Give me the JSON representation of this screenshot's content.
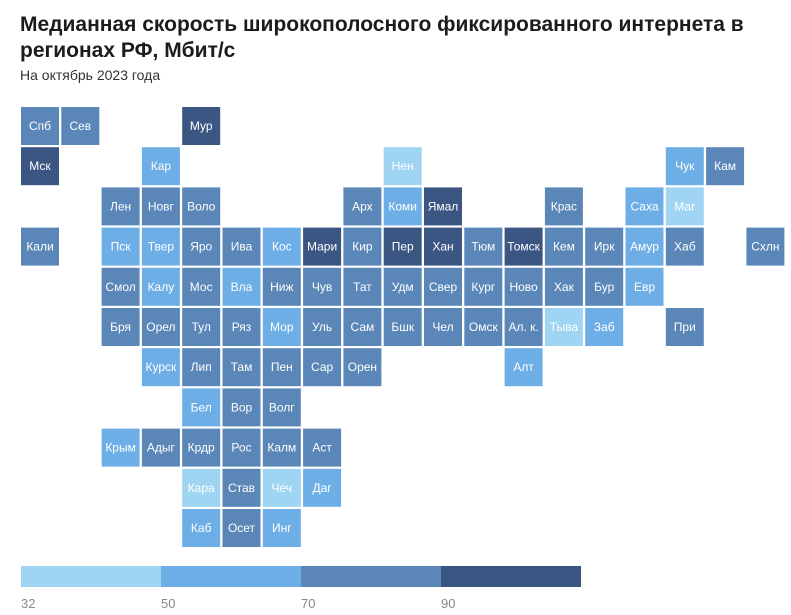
{
  "header": {
    "title": "Медианная скорость широкополосного фиксированного интернета в регионах РФ, Мбит/с",
    "subtitle": "На октябрь 2023 года"
  },
  "chart_data": {
    "type": "heatmap",
    "title": "Медианная скорость широкополосного фиксированного интернета в регионах РФ, Мбит/с",
    "subtitle": "На октябрь 2023 года",
    "value_unit": "Мбит/с",
    "bins": [
      {
        "from": 32,
        "to": 50,
        "color": "#9fd5f3"
      },
      {
        "from": 50,
        "to": 70,
        "color": "#6eaee6"
      },
      {
        "from": 70,
        "to": 90,
        "color": "#5a86b8"
      },
      {
        "from": 90,
        "to": null,
        "color": "#3b5683"
      }
    ],
    "legend_ticks": [
      "32",
      "50",
      "70",
      "90"
    ],
    "cells": [
      {
        "label": "Спб",
        "col": 0,
        "row": 0,
        "bin": 2
      },
      {
        "label": "Сев",
        "col": 1,
        "row": 0,
        "bin": 2
      },
      {
        "label": "Мур",
        "col": 4,
        "row": 0,
        "bin": 3
      },
      {
        "label": "Мск",
        "col": 0,
        "row": 1,
        "bin": 3
      },
      {
        "label": "Кар",
        "col": 3,
        "row": 1,
        "bin": 1
      },
      {
        "label": "Нен",
        "col": 9,
        "row": 1,
        "bin": 0
      },
      {
        "label": "Чук",
        "col": 16,
        "row": 1,
        "bin": 1
      },
      {
        "label": "Кам",
        "col": 17,
        "row": 1,
        "bin": 2
      },
      {
        "label": "Лен",
        "col": 2,
        "row": 2,
        "bin": 2
      },
      {
        "label": "Новг",
        "col": 3,
        "row": 2,
        "bin": 2
      },
      {
        "label": "Воло",
        "col": 4,
        "row": 2,
        "bin": 2
      },
      {
        "label": "Арх",
        "col": 8,
        "row": 2,
        "bin": 2
      },
      {
        "label": "Коми",
        "col": 9,
        "row": 2,
        "bin": 1
      },
      {
        "label": "Ямал",
        "col": 10,
        "row": 2,
        "bin": 3
      },
      {
        "label": "Крас",
        "col": 13,
        "row": 2,
        "bin": 2
      },
      {
        "label": "Саха",
        "col": 15,
        "row": 2,
        "bin": 1
      },
      {
        "label": "Маг",
        "col": 16,
        "row": 2,
        "bin": 0
      },
      {
        "label": "Кали",
        "col": 0,
        "row": 3,
        "bin": 2
      },
      {
        "label": "Пск",
        "col": 2,
        "row": 3,
        "bin": 1
      },
      {
        "label": "Твер",
        "col": 3,
        "row": 3,
        "bin": 1
      },
      {
        "label": "Яро",
        "col": 4,
        "row": 3,
        "bin": 2
      },
      {
        "label": "Ива",
        "col": 5,
        "row": 3,
        "bin": 2
      },
      {
        "label": "Кос",
        "col": 6,
        "row": 3,
        "bin": 1
      },
      {
        "label": "Мари",
        "col": 7,
        "row": 3,
        "bin": 3
      },
      {
        "label": "Кир",
        "col": 8,
        "row": 3,
        "bin": 2
      },
      {
        "label": "Пер",
        "col": 9,
        "row": 3,
        "bin": 3
      },
      {
        "label": "Хан",
        "col": 10,
        "row": 3,
        "bin": 3
      },
      {
        "label": "Тюм",
        "col": 11,
        "row": 3,
        "bin": 2
      },
      {
        "label": "Томск",
        "col": 12,
        "row": 3,
        "bin": 3
      },
      {
        "label": "Кем",
        "col": 13,
        "row": 3,
        "bin": 2
      },
      {
        "label": "Ирк",
        "col": 14,
        "row": 3,
        "bin": 2
      },
      {
        "label": "Амур",
        "col": 15,
        "row": 3,
        "bin": 1
      },
      {
        "label": "Хаб",
        "col": 16,
        "row": 3,
        "bin": 2
      },
      {
        "label": "Схлн",
        "col": 18,
        "row": 3,
        "bin": 2
      },
      {
        "label": "Смол",
        "col": 2,
        "row": 4,
        "bin": 2
      },
      {
        "label": "Калу",
        "col": 3,
        "row": 4,
        "bin": 1
      },
      {
        "label": "Мос",
        "col": 4,
        "row": 4,
        "bin": 2
      },
      {
        "label": "Вла",
        "col": 5,
        "row": 4,
        "bin": 1
      },
      {
        "label": "Ниж",
        "col": 6,
        "row": 4,
        "bin": 2
      },
      {
        "label": "Чув",
        "col": 7,
        "row": 4,
        "bin": 2
      },
      {
        "label": "Тат",
        "col": 8,
        "row": 4,
        "bin": 2
      },
      {
        "label": "Удм",
        "col": 9,
        "row": 4,
        "bin": 2
      },
      {
        "label": "Свер",
        "col": 10,
        "row": 4,
        "bin": 2
      },
      {
        "label": "Кург",
        "col": 11,
        "row": 4,
        "bin": 2
      },
      {
        "label": "Ново",
        "col": 12,
        "row": 4,
        "bin": 2
      },
      {
        "label": "Хак",
        "col": 13,
        "row": 4,
        "bin": 2
      },
      {
        "label": "Бур",
        "col": 14,
        "row": 4,
        "bin": 2
      },
      {
        "label": "Евр",
        "col": 15,
        "row": 4,
        "bin": 1
      },
      {
        "label": "Бря",
        "col": 2,
        "row": 5,
        "bin": 2
      },
      {
        "label": "Орел",
        "col": 3,
        "row": 5,
        "bin": 2
      },
      {
        "label": "Тул",
        "col": 4,
        "row": 5,
        "bin": 2
      },
      {
        "label": "Ряз",
        "col": 5,
        "row": 5,
        "bin": 2
      },
      {
        "label": "Мор",
        "col": 6,
        "row": 5,
        "bin": 1
      },
      {
        "label": "Уль",
        "col": 7,
        "row": 5,
        "bin": 2
      },
      {
        "label": "Сам",
        "col": 8,
        "row": 5,
        "bin": 2
      },
      {
        "label": "Бшк",
        "col": 9,
        "row": 5,
        "bin": 2
      },
      {
        "label": "Чел",
        "col": 10,
        "row": 5,
        "bin": 2
      },
      {
        "label": "Омск",
        "col": 11,
        "row": 5,
        "bin": 2
      },
      {
        "label": "Ал. к.",
        "col": 12,
        "row": 5,
        "bin": 2
      },
      {
        "label": "Тыва",
        "col": 13,
        "row": 5,
        "bin": 0
      },
      {
        "label": "Заб",
        "col": 14,
        "row": 5,
        "bin": 1
      },
      {
        "label": "При",
        "col": 16,
        "row": 5,
        "bin": 2
      },
      {
        "label": "Курск",
        "col": 3,
        "row": 6,
        "bin": 1
      },
      {
        "label": "Лип",
        "col": 4,
        "row": 6,
        "bin": 2
      },
      {
        "label": "Там",
        "col": 5,
        "row": 6,
        "bin": 2
      },
      {
        "label": "Пен",
        "col": 6,
        "row": 6,
        "bin": 2
      },
      {
        "label": "Сар",
        "col": 7,
        "row": 6,
        "bin": 2
      },
      {
        "label": "Орен",
        "col": 8,
        "row": 6,
        "bin": 2
      },
      {
        "label": "Алт",
        "col": 12,
        "row": 6,
        "bin": 1
      },
      {
        "label": "Бел",
        "col": 4,
        "row": 7,
        "bin": 1
      },
      {
        "label": "Вор",
        "col": 5,
        "row": 7,
        "bin": 2
      },
      {
        "label": "Волг",
        "col": 6,
        "row": 7,
        "bin": 2
      },
      {
        "label": "Крым",
        "col": 2,
        "row": 8,
        "bin": 1
      },
      {
        "label": "Адыг",
        "col": 3,
        "row": 8,
        "bin": 2
      },
      {
        "label": "Крдр",
        "col": 4,
        "row": 8,
        "bin": 2
      },
      {
        "label": "Рос",
        "col": 5,
        "row": 8,
        "bin": 2
      },
      {
        "label": "Калм",
        "col": 6,
        "row": 8,
        "bin": 2
      },
      {
        "label": "Аст",
        "col": 7,
        "row": 8,
        "bin": 2
      },
      {
        "label": "Кара",
        "col": 4,
        "row": 9,
        "bin": 0
      },
      {
        "label": "Став",
        "col": 5,
        "row": 9,
        "bin": 2
      },
      {
        "label": "Чеч",
        "col": 6,
        "row": 9,
        "bin": 0
      },
      {
        "label": "Даг",
        "col": 7,
        "row": 9,
        "bin": 1
      },
      {
        "label": "Каб",
        "col": 4,
        "row": 10,
        "bin": 1
      },
      {
        "label": "Осет",
        "col": 5,
        "row": 10,
        "bin": 2
      },
      {
        "label": "Инг",
        "col": 6,
        "row": 10,
        "bin": 1
      }
    ]
  }
}
